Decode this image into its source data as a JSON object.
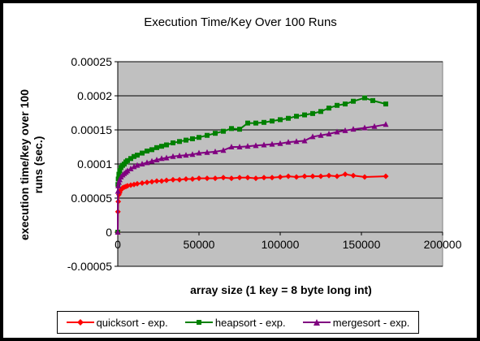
{
  "chart_data": {
    "type": "line",
    "title": "Execution Time/Key Over 100 Runs",
    "xlabel": "array size (1 key = 8 byte long int)",
    "ylabel_line1": "execution time/key over 100",
    "ylabel_line2": "runs (sec.)",
    "xlim": [
      0,
      200000
    ],
    "ylim": [
      -5e-05,
      0.00025
    ],
    "xticks": [
      "0",
      "50000",
      "100000",
      "150000",
      "200000"
    ],
    "yticks": [
      "0.00025",
      "0.0002",
      "0.00015",
      "0.0001",
      "0.00005",
      "0",
      "-0.00005"
    ],
    "grid": true,
    "plot_background": "#c0c0c0",
    "legend_position": "bottom",
    "series": [
      {
        "name": "quicksort - exp.",
        "color": "#ff0000",
        "marker": "diamond",
        "points": [
          [
            0,
            0.0
          ],
          [
            100,
            3e-05
          ],
          [
            300,
            4.5e-05
          ],
          [
            700,
            5.5e-05
          ],
          [
            1200,
            5.8e-05
          ],
          [
            2000,
            6.2e-05
          ],
          [
            3000,
            6.5e-05
          ],
          [
            4000,
            6.6e-05
          ],
          [
            5000,
            6.7e-05
          ],
          [
            6000,
            6.8e-05
          ],
          [
            8000,
            6.9e-05
          ],
          [
            10000,
            7e-05
          ],
          [
            12000,
            7.1e-05
          ],
          [
            15000,
            7.2e-05
          ],
          [
            18000,
            7.3e-05
          ],
          [
            21000,
            7.4e-05
          ],
          [
            24000,
            7.5e-05
          ],
          [
            27000,
            7.5e-05
          ],
          [
            30000,
            7.6e-05
          ],
          [
            34000,
            7.7e-05
          ],
          [
            38000,
            7.7e-05
          ],
          [
            42000,
            7.8e-05
          ],
          [
            46000,
            7.8e-05
          ],
          [
            50000,
            7.9e-05
          ],
          [
            55000,
            7.9e-05
          ],
          [
            60000,
            7.9e-05
          ],
          [
            65000,
            8e-05
          ],
          [
            70000,
            7.9e-05
          ],
          [
            75000,
            8e-05
          ],
          [
            80000,
            8e-05
          ],
          [
            85000,
            7.9e-05
          ],
          [
            90000,
            8e-05
          ],
          [
            95000,
            8e-05
          ],
          [
            100000,
            8.1e-05
          ],
          [
            105000,
            8.2e-05
          ],
          [
            110000,
            8.1e-05
          ],
          [
            115000,
            8.2e-05
          ],
          [
            120000,
            8.2e-05
          ],
          [
            125000,
            8.2e-05
          ],
          [
            130000,
            8.3e-05
          ],
          [
            135000,
            8.2e-05
          ],
          [
            140000,
            8.5e-05
          ],
          [
            145000,
            8.3e-05
          ],
          [
            152000,
            8.1e-05
          ],
          [
            165000,
            8.2e-05
          ]
        ]
      },
      {
        "name": "heapsort - exp.",
        "color": "#008000",
        "marker": "square",
        "points": [
          [
            0,
            0.0
          ],
          [
            100,
            7e-05
          ],
          [
            300,
            7.8e-05
          ],
          [
            700,
            8.5e-05
          ],
          [
            1200,
            9e-05
          ],
          [
            2000,
            9.5e-05
          ],
          [
            3000,
            9.8e-05
          ],
          [
            4000,
            0.0001
          ],
          [
            5000,
            0.000103
          ],
          [
            6000,
            0.000105
          ],
          [
            8000,
            0.000108
          ],
          [
            10000,
            0.000111
          ],
          [
            12000,
            0.000113
          ],
          [
            15000,
            0.000116
          ],
          [
            18000,
            0.000119
          ],
          [
            21000,
            0.000121
          ],
          [
            24000,
            0.000124
          ],
          [
            27000,
            0.000126
          ],
          [
            30000,
            0.000128
          ],
          [
            34000,
            0.000131
          ],
          [
            38000,
            0.000133
          ],
          [
            42000,
            0.000135
          ],
          [
            46000,
            0.000137
          ],
          [
            50000,
            0.000139
          ],
          [
            55000,
            0.000142
          ],
          [
            60000,
            0.000145
          ],
          [
            65000,
            0.000148
          ],
          [
            70000,
            0.000152
          ],
          [
            75000,
            0.000151
          ],
          [
            80000,
            0.00016
          ],
          [
            85000,
            0.00016
          ],
          [
            90000,
            0.000161
          ],
          [
            95000,
            0.000163
          ],
          [
            100000,
            0.000165
          ],
          [
            105000,
            0.000167
          ],
          [
            110000,
            0.00017
          ],
          [
            115000,
            0.000172
          ],
          [
            120000,
            0.000174
          ],
          [
            125000,
            0.000177
          ],
          [
            130000,
            0.000182
          ],
          [
            135000,
            0.000186
          ],
          [
            140000,
            0.000188
          ],
          [
            145000,
            0.000192
          ],
          [
            152000,
            0.000197
          ],
          [
            157000,
            0.000193
          ],
          [
            165000,
            0.000188
          ]
        ]
      },
      {
        "name": "mergesort - exp.",
        "color": "#800080",
        "marker": "triangle",
        "points": [
          [
            0,
            0.0
          ],
          [
            100,
            6e-05
          ],
          [
            300,
            6.8e-05
          ],
          [
            700,
            7.3e-05
          ],
          [
            1200,
            7.7e-05
          ],
          [
            2000,
            8.1e-05
          ],
          [
            3000,
            8.4e-05
          ],
          [
            4000,
            8.6e-05
          ],
          [
            5000,
            8.8e-05
          ],
          [
            6000,
            9e-05
          ],
          [
            8000,
            9.3e-05
          ],
          [
            10000,
            9.6e-05
          ],
          [
            12000,
            9.8e-05
          ],
          [
            15000,
            0.0001
          ],
          [
            18000,
            0.000102
          ],
          [
            21000,
            0.000104
          ],
          [
            24000,
            0.000106
          ],
          [
            27000,
            0.000108
          ],
          [
            30000,
            0.000109
          ],
          [
            34000,
            0.000111
          ],
          [
            38000,
            0.000112
          ],
          [
            42000,
            0.000113
          ],
          [
            46000,
            0.000114
          ],
          [
            50000,
            0.000116
          ],
          [
            55000,
            0.000117
          ],
          [
            60000,
            0.000118
          ],
          [
            65000,
            0.00012
          ],
          [
            70000,
            0.000125
          ],
          [
            75000,
            0.000125
          ],
          [
            80000,
            0.000126
          ],
          [
            85000,
            0.000127
          ],
          [
            90000,
            0.000128
          ],
          [
            95000,
            0.000129
          ],
          [
            100000,
            0.00013
          ],
          [
            105000,
            0.000132
          ],
          [
            110000,
            0.000133
          ],
          [
            115000,
            0.000134
          ],
          [
            120000,
            0.00014
          ],
          [
            125000,
            0.000142
          ],
          [
            130000,
            0.000144
          ],
          [
            135000,
            0.000147
          ],
          [
            140000,
            0.000149
          ],
          [
            145000,
            0.000151
          ],
          [
            152000,
            0.000153
          ],
          [
            158000,
            0.000155
          ],
          [
            165000,
            0.000158
          ]
        ]
      }
    ]
  }
}
